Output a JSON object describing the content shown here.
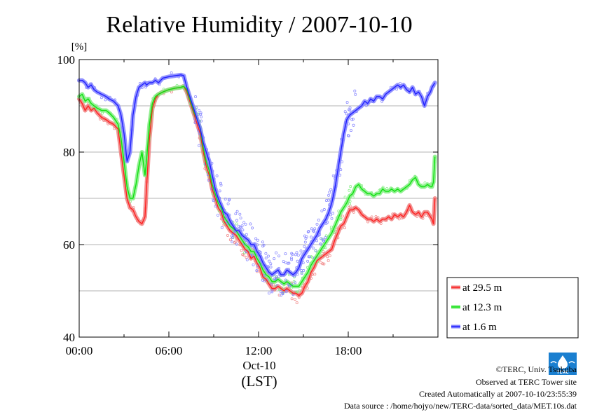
{
  "chart_data": {
    "type": "line",
    "title": "Relative Humidity / 2007-10-10",
    "y_unit": "[%]",
    "xlabel_date": "Oct-10",
    "xlabel_tz": "(LST)",
    "xlim": [
      0,
      24
    ],
    "ylim": [
      40,
      100
    ],
    "x_ticks": [
      {
        "v": 0,
        "label": "00:00"
      },
      {
        "v": 6,
        "label": "06:00"
      },
      {
        "v": 12,
        "label": "12:00"
      },
      {
        "v": 18,
        "label": "18:00"
      }
    ],
    "y_ticks": [
      {
        "v": 40,
        "label": "40"
      },
      {
        "v": 60,
        "label": "60"
      },
      {
        "v": 80,
        "label": "80"
      },
      {
        "v": 100,
        "label": "100"
      }
    ],
    "grid": true,
    "legend_position": "right-bottom",
    "series": [
      {
        "name": "at 29.5 m",
        "color": "#ff2020",
        "band_color": "#f08080",
        "x": [
          0.0,
          0.2,
          0.4,
          0.6,
          0.8,
          1.0,
          1.2,
          1.5,
          1.8,
          2.0,
          2.3,
          2.6,
          2.8,
          3.0,
          3.2,
          3.4,
          3.6,
          3.8,
          4.0,
          4.2,
          4.4,
          4.5,
          4.7,
          4.9,
          5.1,
          5.3,
          5.6,
          6.0,
          6.4,
          6.8,
          7.0,
          7.2,
          7.5,
          7.7,
          7.9,
          8.1,
          8.3,
          8.5,
          8.7,
          8.9,
          9.1,
          9.3,
          9.5,
          9.7,
          9.9,
          10.1,
          10.3,
          10.5,
          10.7,
          10.9,
          11.1,
          11.3,
          11.5,
          11.7,
          11.9,
          12.1,
          12.3,
          12.5,
          12.7,
          12.9,
          13.1,
          13.3,
          13.5,
          13.7,
          13.9,
          14.1,
          14.3,
          14.5,
          14.7,
          14.9,
          15.1,
          15.3,
          15.5,
          15.7,
          15.9,
          16.1,
          16.3,
          16.5,
          16.7,
          16.9,
          17.1,
          17.3,
          17.5,
          17.7,
          17.9,
          18.1,
          18.3,
          18.5,
          18.7,
          18.9,
          19.1,
          19.3,
          19.5,
          19.7,
          19.9,
          20.1,
          20.3,
          20.5,
          20.7,
          20.9,
          21.1,
          21.3,
          21.5,
          21.7,
          21.9,
          22.1,
          22.3,
          22.5,
          22.7,
          22.9,
          23.1,
          23.3,
          23.5,
          23.6,
          23.7,
          23.8
        ],
        "values": [
          91.5,
          90.5,
          89,
          90,
          89,
          89.5,
          88.5,
          87.5,
          87,
          86.5,
          86,
          85,
          80,
          75,
          70,
          68,
          67.5,
          66,
          65,
          64.5,
          66,
          72,
          83,
          89.5,
          91.5,
          92.5,
          93,
          93.5,
          93.8,
          94,
          94.2,
          93,
          90,
          88,
          86,
          84,
          80,
          77,
          75,
          72,
          70,
          68,
          67,
          65,
          64,
          63,
          62.5,
          62,
          61,
          60,
          59,
          58.5,
          57,
          57.5,
          56,
          55,
          53,
          52.5,
          51.5,
          50.5,
          50.5,
          51,
          50.5,
          50,
          50.5,
          50,
          49.5,
          49.5,
          49,
          49.5,
          51,
          52,
          54,
          55,
          56.5,
          57,
          57.5,
          58,
          58.5,
          59,
          61,
          62.5,
          64,
          64.5,
          66,
          67.5,
          67.5,
          68,
          67.5,
          66.5,
          66,
          65.5,
          65.5,
          65,
          65.5,
          65,
          65.5,
          65.5,
          66,
          65.5,
          66.5,
          66,
          66.5,
          66,
          67,
          68.5,
          67,
          66.5,
          67,
          66,
          67,
          67,
          66,
          65.5,
          64.5,
          70
        ]
      },
      {
        "name": "at 12.3 m",
        "color": "#10e010",
        "band_color": "#80ee80",
        "x": [
          0.0,
          0.2,
          0.4,
          0.6,
          0.8,
          1.0,
          1.2,
          1.5,
          1.8,
          2.0,
          2.3,
          2.6,
          2.8,
          3.0,
          3.2,
          3.4,
          3.6,
          3.8,
          4.0,
          4.2,
          4.4,
          4.5,
          4.7,
          4.9,
          5.1,
          5.3,
          5.6,
          6.0,
          6.4,
          6.8,
          7.0,
          7.2,
          7.5,
          7.7,
          7.9,
          8.1,
          8.3,
          8.5,
          8.7,
          8.9,
          9.1,
          9.3,
          9.5,
          9.7,
          9.9,
          10.1,
          10.3,
          10.5,
          10.7,
          10.9,
          11.1,
          11.3,
          11.5,
          11.7,
          11.9,
          12.1,
          12.3,
          12.5,
          12.7,
          12.9,
          13.1,
          13.3,
          13.5,
          13.7,
          13.9,
          14.1,
          14.3,
          14.5,
          14.7,
          14.9,
          15.1,
          15.3,
          15.5,
          15.7,
          15.9,
          16.1,
          16.3,
          16.5,
          16.7,
          16.9,
          17.1,
          17.3,
          17.5,
          17.7,
          17.9,
          18.1,
          18.3,
          18.5,
          18.7,
          18.9,
          19.1,
          19.3,
          19.5,
          19.7,
          19.9,
          20.1,
          20.3,
          20.5,
          20.7,
          20.9,
          21.1,
          21.3,
          21.5,
          21.7,
          21.9,
          22.1,
          22.3,
          22.5,
          22.7,
          22.9,
          23.1,
          23.3,
          23.5,
          23.6,
          23.7,
          23.8
        ],
        "values": [
          92,
          92.5,
          91,
          91.5,
          90.5,
          90,
          89.5,
          89,
          89,
          88.5,
          87.5,
          86,
          83,
          78,
          72.5,
          70,
          70,
          73,
          77,
          80,
          75,
          78,
          86,
          90.5,
          92,
          92.5,
          93,
          93.5,
          93.8,
          94,
          94.2,
          93.5,
          90.5,
          88.5,
          87,
          85,
          81,
          78,
          76,
          73,
          71,
          69,
          68,
          66,
          65,
          64,
          63.5,
          63,
          62,
          61,
          60,
          59.5,
          58.5,
          58.5,
          57,
          56,
          54.5,
          53.5,
          53,
          52,
          52,
          52.5,
          52,
          51.5,
          52,
          51.5,
          51,
          51,
          51,
          52,
          53,
          54,
          55.5,
          56.5,
          57.5,
          58.5,
          59.5,
          60.5,
          61.5,
          62.5,
          64,
          65.5,
          67,
          68,
          69,
          70.5,
          71,
          72.5,
          73,
          72,
          71.5,
          71,
          71,
          70.5,
          71,
          71,
          72,
          71.5,
          71.5,
          72,
          71.5,
          72,
          71.5,
          72,
          72.5,
          73,
          74,
          74.5,
          73,
          72.5,
          72.5,
          73,
          72.5,
          72.5,
          73.5,
          79
        ]
      },
      {
        "name": "at 1.6 m",
        "color": "#2020ff",
        "band_color": "#8080ff",
        "x": [
          0.0,
          0.2,
          0.4,
          0.6,
          0.8,
          1.0,
          1.2,
          1.5,
          1.8,
          2.0,
          2.3,
          2.6,
          2.8,
          3.0,
          3.2,
          3.4,
          3.6,
          3.8,
          4.0,
          4.2,
          4.4,
          4.5,
          4.7,
          4.9,
          5.1,
          5.3,
          5.6,
          6.0,
          6.4,
          6.8,
          7.0,
          7.2,
          7.5,
          7.7,
          7.9,
          8.1,
          8.3,
          8.5,
          8.7,
          8.9,
          9.1,
          9.3,
          9.5,
          9.7,
          9.9,
          10.1,
          10.3,
          10.5,
          10.7,
          10.9,
          11.1,
          11.3,
          11.5,
          11.7,
          11.9,
          12.1,
          12.3,
          12.5,
          12.7,
          12.9,
          13.1,
          13.3,
          13.5,
          13.7,
          13.9,
          14.1,
          14.3,
          14.5,
          14.7,
          14.9,
          15.1,
          15.3,
          15.5,
          15.7,
          15.9,
          16.1,
          16.3,
          16.5,
          16.7,
          16.9,
          17.1,
          17.3,
          17.5,
          17.7,
          17.9,
          18.1,
          18.3,
          18.5,
          18.7,
          18.9,
          19.1,
          19.3,
          19.5,
          19.7,
          19.9,
          20.1,
          20.3,
          20.5,
          20.7,
          20.9,
          21.1,
          21.3,
          21.5,
          21.7,
          21.9,
          22.1,
          22.3,
          22.5,
          22.7,
          22.9,
          23.1,
          23.3,
          23.5,
          23.6,
          23.7,
          23.8
        ],
        "values": [
          95.5,
          95.5,
          95,
          94,
          94.5,
          93.5,
          93,
          92.5,
          92,
          91.5,
          91,
          90,
          88,
          84,
          78,
          80,
          88,
          92,
          94,
          94.5,
          95,
          94.5,
          95,
          95,
          95.5,
          95,
          96,
          96.3,
          96.5,
          96.7,
          96.5,
          94,
          91,
          89,
          87,
          85,
          82,
          80,
          78,
          75,
          72,
          70,
          68.5,
          67,
          66.5,
          65,
          64,
          63,
          63,
          62,
          61.5,
          61,
          60,
          60,
          58.5,
          57.5,
          56,
          55,
          54,
          53.5,
          54,
          54.5,
          53.5,
          53.5,
          54.5,
          54,
          53.5,
          54,
          55,
          57,
          58,
          59,
          60,
          61,
          62,
          63.5,
          64.5,
          65.5,
          67,
          69,
          72,
          76,
          80,
          84,
          87,
          88,
          88.5,
          89,
          89.5,
          90,
          91,
          90.5,
          91.5,
          91,
          92,
          92,
          91.5,
          92.5,
          93,
          93.5,
          94,
          94.5,
          94,
          94.5,
          93.5,
          93,
          94,
          92.5,
          93,
          92,
          90,
          92,
          93,
          94,
          94.5,
          95
        ]
      }
    ]
  },
  "legend": {
    "items": [
      "at 29.5 m",
      "at 12.3 m",
      "at 1.6 m"
    ]
  },
  "footer": {
    "lines": [
      "©TERC, Univ. Tsukuba",
      "Observed at TERC Tower site",
      "Created Automatically at 2007-10-10/23:55:39",
      "Data source : /home/hojyo/new/TERC-data/sorted_data/MET.10s.dat"
    ],
    "logo_text": "TERC"
  }
}
